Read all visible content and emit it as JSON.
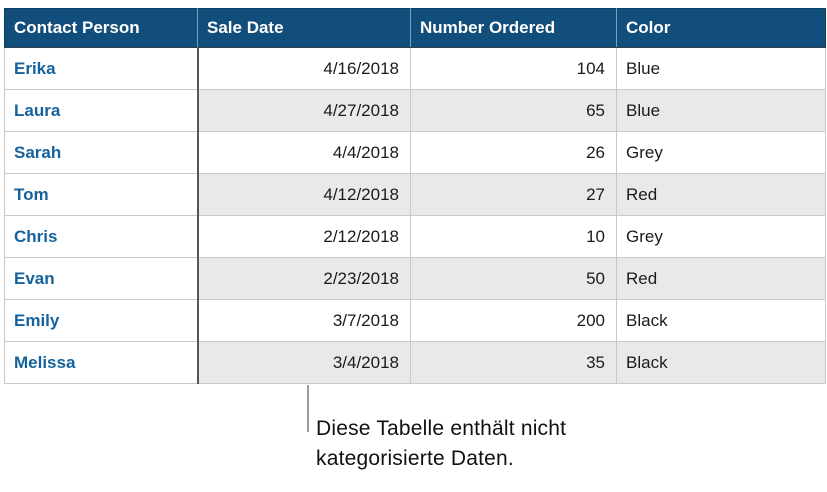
{
  "table": {
    "columns": [
      "Contact Person",
      "Sale Date",
      "Number Ordered",
      "Color"
    ],
    "rows": [
      [
        "Erika",
        "4/16/2018",
        "104",
        "Blue"
      ],
      [
        "Laura",
        "4/27/2018",
        "65",
        "Blue"
      ],
      [
        "Sarah",
        "4/4/2018",
        "26",
        "Grey"
      ],
      [
        "Tom",
        "4/12/2018",
        "27",
        "Red"
      ],
      [
        "Chris",
        "2/12/2018",
        "10",
        "Grey"
      ],
      [
        "Evan",
        "2/23/2018",
        "50",
        "Red"
      ],
      [
        "Emily",
        "3/7/2018",
        "200",
        "Black"
      ],
      [
        "Melissa",
        "3/4/2018",
        "35",
        "Black"
      ]
    ]
  },
  "callout": {
    "lines": [
      "Diese Tabelle enthält nicht",
      "kategorisierte Daten."
    ]
  },
  "colors": {
    "header_background": "#124E7C",
    "header_text": "#FFFFFF",
    "row_alternate_background": "#E9E9E9",
    "contact_name_text": "#15639E",
    "body_text": "#1B1B1B",
    "grid_line": "#C9C9C9",
    "header_column_divider": "#55565A",
    "callout_line": "#9B9B9B",
    "callout_text": "#111111"
  }
}
